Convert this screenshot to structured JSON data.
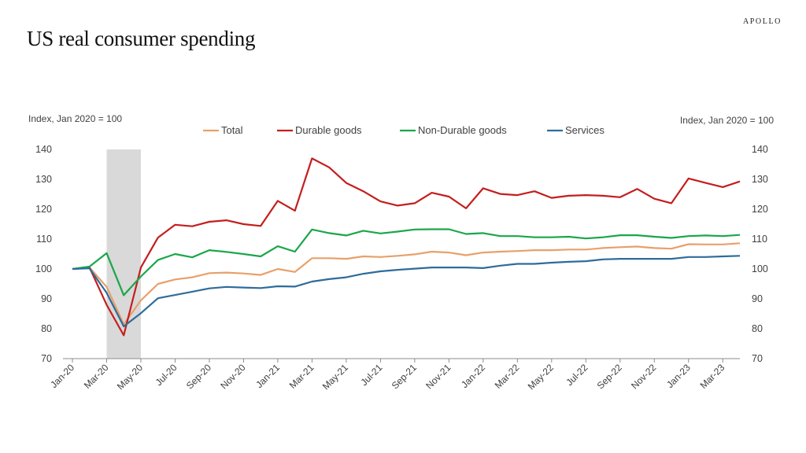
{
  "page": {
    "title": "US real consumer spending",
    "brand": "APOLLO"
  },
  "colors": {
    "Total": "#e8a06b",
    "Durable goods": "#c41e1e",
    "Non-Durable goods": "#1aa64a",
    "Services": "#2e6c9b",
    "recession": "#d9d9d9",
    "axis": "#8c8c8c"
  },
  "chart_data": {
    "type": "line",
    "title": "US real consumer spending",
    "ylabel_left": "Index, Jan 2020  = 100",
    "ylabel_right": "Index, Jan 2020  = 100",
    "ylim": [
      70,
      140
    ],
    "yticks": [
      70,
      80,
      90,
      100,
      110,
      120,
      130,
      140
    ],
    "legend_position": "top",
    "grid": false,
    "shaded_region": {
      "from": "Mar-20",
      "to": "May-20"
    },
    "x_tick_labels": [
      "Jan-20",
      "Mar-20",
      "May-20",
      "Jul-20",
      "Sep-20",
      "Nov-20",
      "Jan-21",
      "Mar-21",
      "May-21",
      "Jul-21",
      "Sep-21",
      "Nov-21",
      "Jan-22",
      "Mar-22",
      "May-22",
      "Jul-22",
      "Sep-22",
      "Nov-22",
      "Jan-23",
      "Mar-23"
    ],
    "x": [
      "Jan-20",
      "Feb-20",
      "Mar-20",
      "Apr-20",
      "May-20",
      "Jun-20",
      "Jul-20",
      "Aug-20",
      "Sep-20",
      "Oct-20",
      "Nov-20",
      "Dec-20",
      "Jan-21",
      "Feb-21",
      "Mar-21",
      "Apr-21",
      "May-21",
      "Jun-21",
      "Jul-21",
      "Aug-21",
      "Sep-21",
      "Oct-21",
      "Nov-21",
      "Dec-21",
      "Jan-22",
      "Feb-22",
      "Mar-22",
      "Apr-22",
      "May-22",
      "Jun-22",
      "Jul-22",
      "Aug-22",
      "Sep-22",
      "Oct-22",
      "Nov-22",
      "Dec-22",
      "Jan-23",
      "Feb-23",
      "Mar-23",
      "Apr-23"
    ],
    "series": [
      {
        "name": "Total",
        "values": [
          100,
          100.5,
          94,
          81.5,
          89.5,
          95,
          96.5,
          97.2,
          98.6,
          98.8,
          98.5,
          98,
          100,
          99,
          103.6,
          103.6,
          103.4,
          104.2,
          104,
          104.4,
          104.9,
          105.8,
          105.5,
          104.6,
          105.5,
          105.8,
          106,
          106.3,
          106.3,
          106.5,
          106.5,
          107,
          107.3,
          107.5,
          107,
          106.8,
          108.3,
          108.2,
          108.2,
          108.6
        ]
      },
      {
        "name": "Durable goods",
        "values": [
          100,
          100.5,
          88,
          77.8,
          100.5,
          110.5,
          114.8,
          114.3,
          115.8,
          116.3,
          115,
          114.4,
          122.8,
          119.5,
          137,
          134,
          128.8,
          126,
          122.6,
          121.2,
          122,
          125.5,
          124.2,
          120.3,
          127,
          125.1,
          124.7,
          126,
          123.8,
          124.5,
          124.7,
          124.5,
          124,
          126.8,
          123.5,
          122,
          130.3,
          128.8,
          127.4,
          129.3
        ]
      },
      {
        "name": "Non-Durable goods",
        "values": [
          100,
          100.8,
          105.3,
          91.2,
          97.5,
          103,
          105,
          103.9,
          106.3,
          105.7,
          105,
          104.2,
          107.6,
          105.8,
          113.2,
          112,
          111.2,
          112.8,
          111.9,
          112.5,
          113.2,
          113.3,
          113.3,
          111.7,
          112,
          111,
          111,
          110.6,
          110.6,
          110.8,
          110.2,
          110.6,
          111.3,
          111.3,
          110.8,
          110.4,
          111,
          111.2,
          111,
          111.4
        ]
      },
      {
        "name": "Services",
        "values": [
          100,
          100.2,
          92,
          80.8,
          85.2,
          90.2,
          91.3,
          92.4,
          93.5,
          94,
          93.8,
          93.6,
          94.2,
          94.1,
          95.8,
          96.6,
          97.2,
          98.4,
          99.2,
          99.7,
          100.1,
          100.5,
          100.5,
          100.5,
          100.3,
          101.1,
          101.7,
          101.7,
          102.1,
          102.4,
          102.6,
          103.2,
          103.4,
          103.4,
          103.4,
          103.4,
          104,
          104,
          104.2,
          104.4
        ]
      }
    ]
  }
}
